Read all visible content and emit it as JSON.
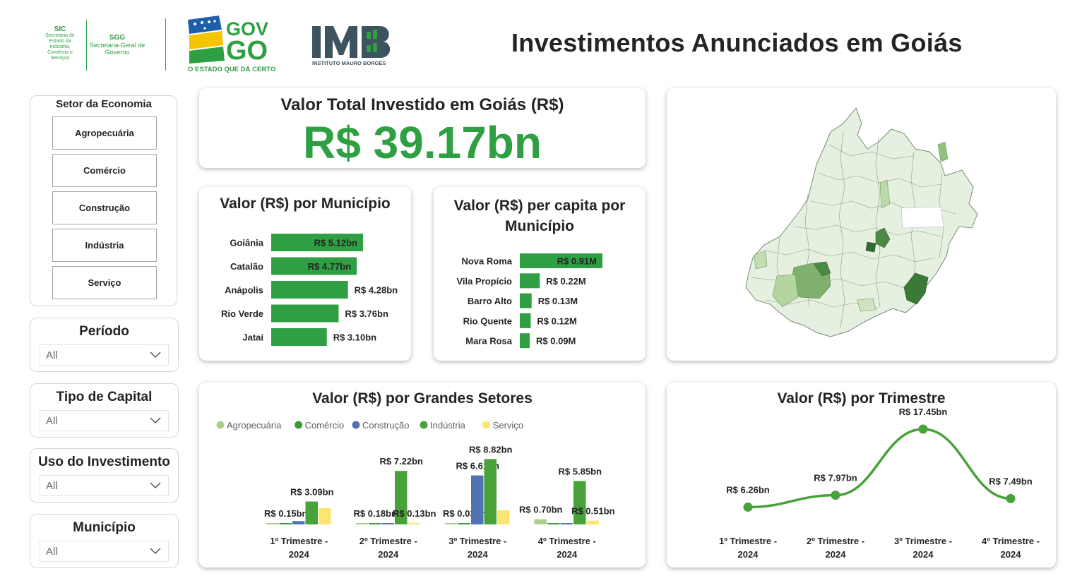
{
  "header": {
    "sic_acronym": "SIC",
    "sic_name": "Secretaria de Estado da Indústria, Comércio e Serviços",
    "sgg_acronym": "SGG",
    "sgg_name": "Secretaria-Geral de Governo",
    "gov_logo_text": "GOV GO",
    "gov_slogan": "O ESTADO QUE DÁ CERTO",
    "imb_logo_text": "IMB",
    "imb_subtitle": "INSTITUTO MAURO BORGES",
    "title": "Investimentos Anunciados em Goiás"
  },
  "slicers": {
    "sector": {
      "title": "Setor da Economia",
      "options": [
        "Agropecuária",
        "Comércio",
        "Construção",
        "Indústria",
        "Serviço"
      ]
    },
    "periodo": {
      "label": "Período",
      "value": "All"
    },
    "tipo_capital": {
      "label": "Tipo de Capital",
      "value": "All"
    },
    "uso_investimento": {
      "label": "Uso do Investimento",
      "value": "All"
    },
    "municipio": {
      "label": "Município",
      "value": "All"
    }
  },
  "kpi": {
    "title": "Valor Total Investido em Goiás (R$)",
    "value": "R$ 39.17bn"
  },
  "colors": {
    "accent_green": "#2ea043",
    "agropecuaria": "#a9d18e",
    "comercio": "#3e9b3a",
    "construcao": "#4f73b3",
    "industria": "#48a23a",
    "servico": "#fbe66f",
    "map_fill": "#e6f0e0",
    "map_dark": "#3a7a35"
  },
  "chart_data": [
    {
      "type": "bar",
      "orientation": "horizontal",
      "title": "Valor (R$) por Município",
      "categories": [
        "Goiânia",
        "Catalão",
        "Anápolis",
        "Rio Verde",
        "Jataí"
      ],
      "values": [
        5.12,
        4.77,
        4.28,
        3.76,
        3.1
      ],
      "labels": [
        "R$ 5.12bn",
        "R$ 4.77bn",
        "R$ 4.28bn",
        "R$ 3.76bn",
        "R$ 3.10bn"
      ],
      "unit": "bn"
    },
    {
      "type": "bar",
      "orientation": "horizontal",
      "title": "Valor (R$) per capita por Município",
      "categories": [
        "Nova Roma",
        "Vila Propício",
        "Barro Alto",
        "Rio Quente",
        "Mara Rosa"
      ],
      "values": [
        0.91,
        0.22,
        0.13,
        0.12,
        0.09
      ],
      "labels": [
        "R$ 0.91M",
        "R$ 0.22M",
        "R$ 0.13M",
        "R$ 0.12M",
        "R$ 0.09M"
      ],
      "unit": "M"
    },
    {
      "type": "bar",
      "title": "Valor (R$) por Grandes Setores",
      "categories": [
        "1º Trimestre - 2024",
        "2º Trimestre - 2024",
        "3º Trimestre - 2024",
        "4º Trimestre - 2024"
      ],
      "legend": "top-left",
      "series": [
        {
          "name": "Agropecuária",
          "values": [
            0.02,
            0.05,
            0.03,
            0.7
          ],
          "labels": [
            "",
            "",
            "",
            "R$ 0.70bn"
          ]
        },
        {
          "name": "Comércio",
          "values": [
            0.15,
            0.18,
            0.03,
            0.15
          ],
          "labels": [
            "R$ 0.15bn",
            "R$ 0.18bn",
            "R$ 0.03bn",
            ""
          ]
        },
        {
          "name": "Construção",
          "values": [
            0.45,
            0.08,
            6.61,
            0.05
          ],
          "labels": [
            "",
            "",
            "R$ 6.61bn",
            ""
          ]
        },
        {
          "name": "Indústria",
          "values": [
            3.09,
            7.22,
            8.82,
            5.85
          ],
          "labels": [
            "R$ 3.09bn",
            "R$ 7.22bn",
            "R$ 8.82bn",
            "R$ 5.85bn"
          ]
        },
        {
          "name": "Serviço",
          "values": [
            2.2,
            0.13,
            1.9,
            0.51
          ],
          "labels": [
            "",
            "R$ 0.13bn",
            "",
            "R$ 0.51bn"
          ]
        }
      ],
      "ylim": [
        0,
        10
      ]
    },
    {
      "type": "line",
      "title": "Valor (R$) por Trimestre",
      "categories": [
        "1º Trimestre - 2024",
        "2º Trimestre - 2024",
        "3º Trimestre - 2024",
        "4º Trimestre - 2024"
      ],
      "values": [
        6.26,
        7.97,
        17.45,
        7.49
      ],
      "labels": [
        "R$ 6.26bn",
        "R$ 7.97bn",
        "R$ 17.45bn",
        "R$ 7.49bn"
      ],
      "ylim": [
        0,
        20
      ]
    }
  ]
}
